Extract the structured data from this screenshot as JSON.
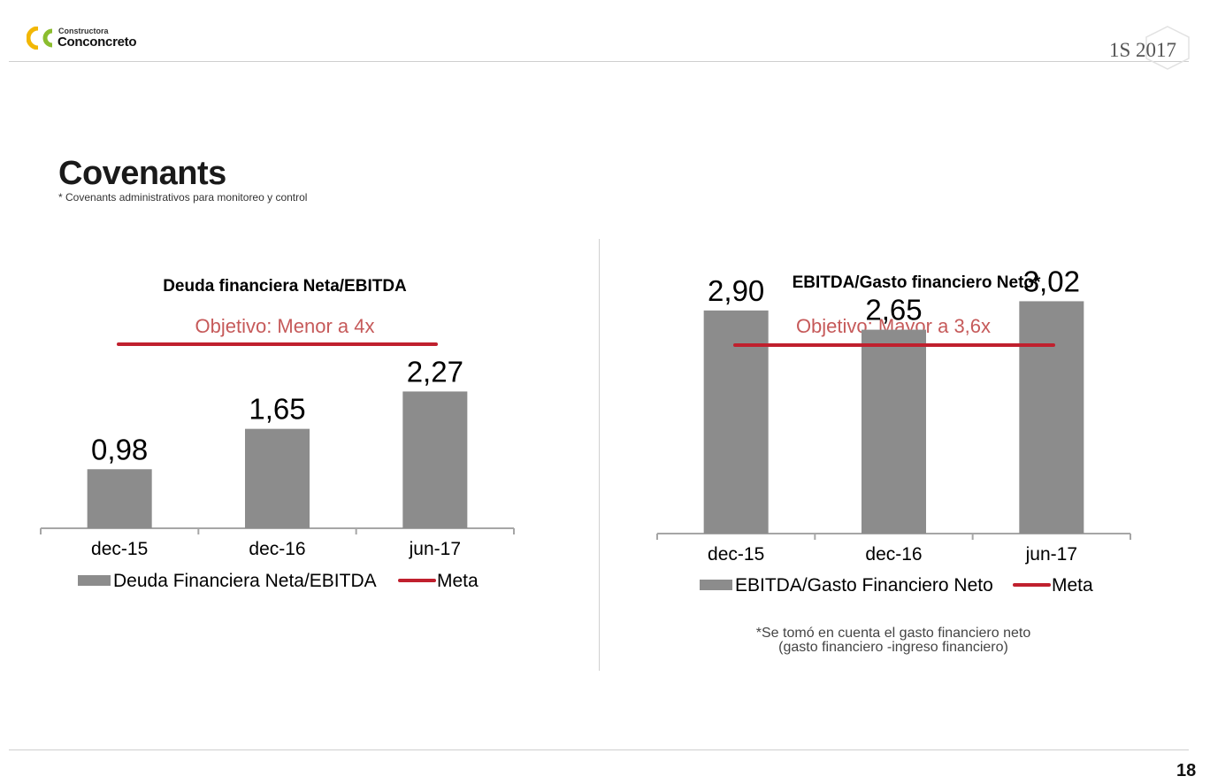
{
  "header": {
    "logo_small": "Constructora",
    "logo_big": "Conconcreto",
    "period": "1S 2017"
  },
  "title": "Covenants",
  "subtitle": "* Covenants administrativos para monitoreo y control",
  "colors": {
    "bar": "#8c8c8c",
    "meta": "#c0202e",
    "objective_text": "#c65a5a",
    "logo_green": "#8bbd2e",
    "logo_yellow": "#f2b705"
  },
  "chart_data": [
    {
      "type": "bar",
      "title": "Deuda financiera Neta/EBITDA",
      "objective": "Objetivo: Menor a 4x",
      "categories": [
        "dec-15",
        "dec-16",
        "jun-17"
      ],
      "values": [
        0.98,
        1.65,
        2.27
      ],
      "value_labels": [
        "0,98",
        "1,65",
        "2,27"
      ],
      "target": 4,
      "ylim": [
        0,
        4.2
      ],
      "series": [
        {
          "name": "Deuda Financiera Neta/EBITDA",
          "values": [
            0.98,
            1.65,
            2.27
          ]
        }
      ],
      "legend": [
        "Deuda Financiera Neta/EBITDA",
        "Meta"
      ],
      "legend_position": "bottom"
    },
    {
      "type": "bar",
      "title": "EBITDA/Gasto financiero Neto*",
      "objective": "Objetivo: Mayor a 3,6x",
      "categories": [
        "dec-15",
        "dec-16",
        "jun-17"
      ],
      "values": [
        2.9,
        2.65,
        3.02
      ],
      "value_labels": [
        "2,90",
        "2,65",
        "3,02"
      ],
      "target": 3.6,
      "ylim": [
        0,
        3.6
      ],
      "series": [
        {
          "name": "EBITDA/Gasto Financiero Neto",
          "values": [
            2.9,
            2.65,
            3.02
          ]
        }
      ],
      "legend": [
        "EBITDA/Gasto Financiero Neto",
        "Meta"
      ],
      "legend_position": "bottom"
    }
  ],
  "footnote": [
    "*Se tomó en cuenta el gasto financiero neto",
    "(gasto financiero -ingreso financiero)"
  ],
  "page_number": "18"
}
